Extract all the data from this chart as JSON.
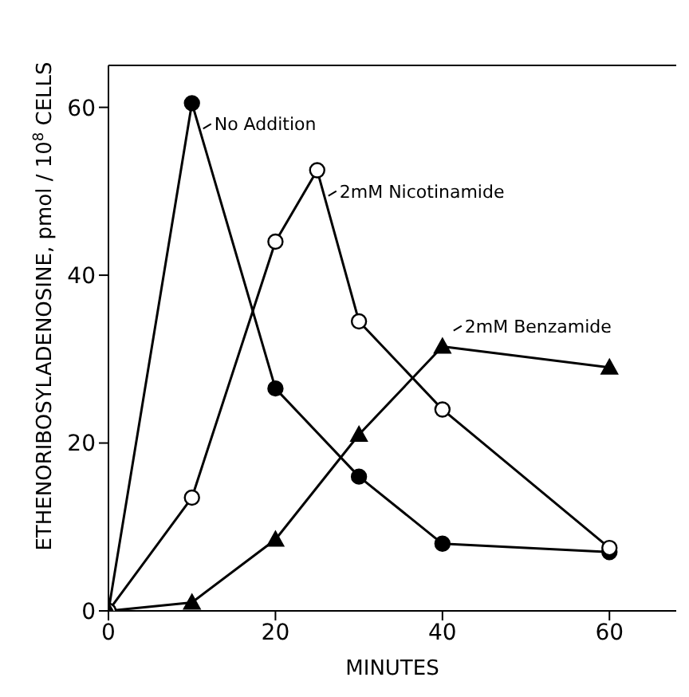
{
  "chart_data": {
    "type": "line",
    "xlabel": "MINUTES",
    "ylabel": "ETHENORIBOSYLADENOSINE, pmol / 10$^{8}$ CELLS",
    "xlim": [
      0,
      68
    ],
    "ylim": [
      0,
      65
    ],
    "xticks": [
      0,
      20,
      40,
      60
    ],
    "yticks": [
      0,
      20,
      40,
      60
    ],
    "grid": false,
    "legend": "top right",
    "line_style": "solid",
    "series": [
      {
        "name": "No Addition",
        "color": "#000000",
        "marker": "circle",
        "x": [
          0,
          10,
          20,
          30,
          40,
          60
        ],
        "values": [
          0,
          60.5,
          26.5,
          16,
          8,
          7
        ]
      },
      {
        "name": "2mM Nicotinamide",
        "color": "#000000",
        "marker": "circle",
        "x": [
          0,
          10,
          20,
          25,
          30,
          40,
          60
        ],
        "values": [
          0,
          13.5,
          44,
          52.5,
          34.5,
          24,
          7.5
        ]
      },
      {
        "name": "2mM Benzamide",
        "color": "#000000",
        "marker": "triangle",
        "x": [
          0,
          10,
          20,
          30,
          40,
          60
        ],
        "values": [
          0,
          1,
          8.5,
          21,
          31.5,
          29
        ]
      }
    ]
  }
}
